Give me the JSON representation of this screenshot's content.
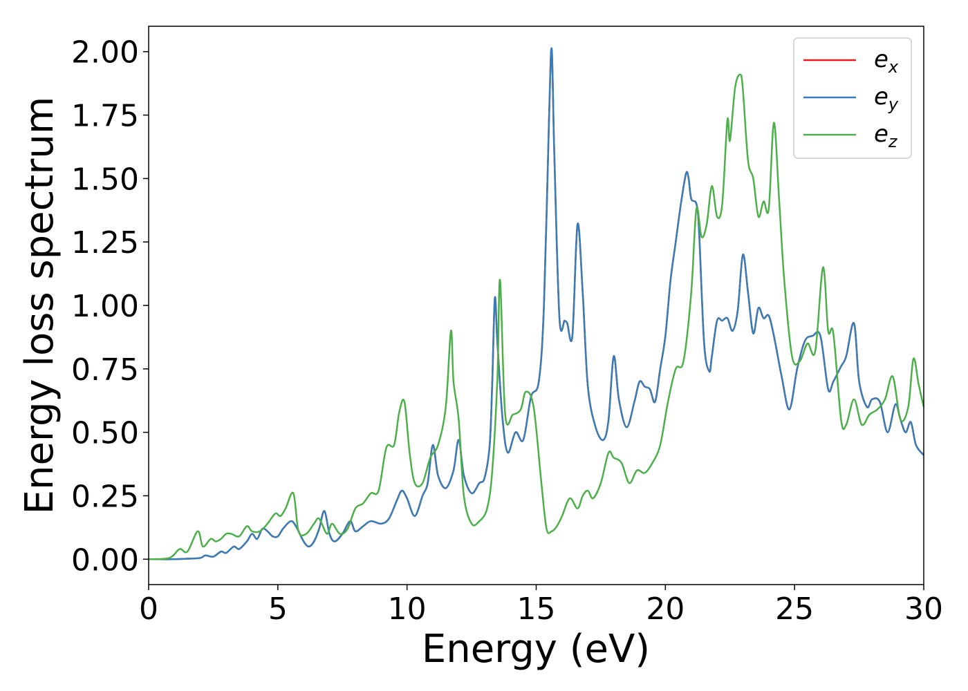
{
  "chart_data": {
    "type": "line",
    "xlabel": "Energy (eV)",
    "ylabel": "Energy loss spectrum",
    "xlim": [
      0,
      30
    ],
    "ylim": [
      -0.1,
      2.1
    ],
    "xticks": [
      0,
      5,
      10,
      15,
      20,
      25,
      30
    ],
    "xtick_labels": [
      "0",
      "5",
      "10",
      "15",
      "20",
      "25",
      "30"
    ],
    "yticks": [
      0.0,
      0.25,
      0.5,
      0.75,
      1.0,
      1.25,
      1.5,
      1.75,
      2.0
    ],
    "ytick_labels": [
      "0.00",
      "0.25",
      "0.50",
      "0.75",
      "1.00",
      "1.25",
      "1.50",
      "1.75",
      "2.00"
    ],
    "grid": false,
    "legend_position": "top-right",
    "series": [
      {
        "name": "e",
        "sub": "x",
        "color": "#e41a1c",
        "x": [
          0,
          1,
          1.5,
          2,
          2.2,
          2.5,
          2.8,
          3.0,
          3.3,
          3.5,
          3.8,
          4.0,
          4.2,
          4.4,
          4.6,
          4.8,
          5.0,
          5.2,
          5.5,
          5.7,
          6.0,
          6.2,
          6.4,
          6.6,
          6.8,
          7.0,
          7.2,
          7.5,
          7.8,
          8.0,
          8.3,
          8.6,
          9.0,
          9.3,
          9.6,
          9.8,
          10.0,
          10.3,
          10.6,
          10.8,
          11.0,
          11.2,
          11.5,
          11.8,
          12.0,
          12.2,
          12.5,
          12.8,
          13.0,
          13.2,
          13.3,
          13.4,
          13.5,
          13.7,
          13.9,
          14.2,
          14.5,
          14.8,
          15.1,
          15.3,
          15.5,
          15.6,
          15.7,
          15.9,
          16.1,
          16.2,
          16.4,
          16.6,
          16.8,
          17.0,
          17.3,
          17.6,
          17.8,
          18.0,
          18.2,
          18.5,
          18.8,
          19.0,
          19.2,
          19.4,
          19.6,
          19.8,
          20.0,
          20.2,
          20.4,
          20.6,
          20.8,
          20.9,
          21.0,
          21.2,
          21.3,
          21.5,
          21.7,
          21.8,
          22.0,
          22.2,
          22.4,
          22.6,
          22.8,
          23.0,
          23.2,
          23.4,
          23.6,
          23.8,
          24.0,
          24.2,
          24.5,
          24.8,
          25.1,
          25.4,
          25.7,
          26.0,
          26.3,
          26.5,
          26.8,
          27.0,
          27.3,
          27.5,
          27.8,
          28.0,
          28.3,
          28.6,
          28.9,
          29.1,
          29.3,
          29.5,
          29.7,
          30.0
        ],
        "y": [
          0,
          0.0,
          0.002,
          0.005,
          0.015,
          0.01,
          0.03,
          0.025,
          0.05,
          0.04,
          0.07,
          0.1,
          0.08,
          0.12,
          0.11,
          0.09,
          0.09,
          0.12,
          0.15,
          0.13,
          0.07,
          0.05,
          0.07,
          0.12,
          0.19,
          0.1,
          0.07,
          0.1,
          0.15,
          0.11,
          0.13,
          0.15,
          0.14,
          0.16,
          0.23,
          0.27,
          0.24,
          0.17,
          0.25,
          0.3,
          0.45,
          0.33,
          0.28,
          0.35,
          0.47,
          0.33,
          0.26,
          0.3,
          0.32,
          0.45,
          0.7,
          1.03,
          0.85,
          0.55,
          0.42,
          0.5,
          0.47,
          0.64,
          0.7,
          1.0,
          1.75,
          2.01,
          1.6,
          0.95,
          0.94,
          0.93,
          0.88,
          1.32,
          1.05,
          0.68,
          0.52,
          0.47,
          0.55,
          0.8,
          0.63,
          0.52,
          0.62,
          0.7,
          0.68,
          0.67,
          0.62,
          0.75,
          0.88,
          1.1,
          1.25,
          1.4,
          1.52,
          1.5,
          1.42,
          1.4,
          1.3,
          0.85,
          0.74,
          0.8,
          0.94,
          0.94,
          0.95,
          0.9,
          0.98,
          1.2,
          1.05,
          0.89,
          0.99,
          0.95,
          0.96,
          0.88,
          0.72,
          0.59,
          0.75,
          0.86,
          0.88,
          0.88,
          0.67,
          0.7,
          0.76,
          0.8,
          0.93,
          0.7,
          0.6,
          0.63,
          0.62,
          0.5,
          0.61,
          0.55,
          0.5,
          0.54,
          0.45,
          0.41
        ]
      },
      {
        "name": "e",
        "sub": "y",
        "color": "#377eb8",
        "x": [
          0,
          1,
          1.5,
          2,
          2.2,
          2.5,
          2.8,
          3.0,
          3.3,
          3.5,
          3.8,
          4.0,
          4.2,
          4.4,
          4.6,
          4.8,
          5.0,
          5.2,
          5.5,
          5.7,
          6.0,
          6.2,
          6.4,
          6.6,
          6.8,
          7.0,
          7.2,
          7.5,
          7.8,
          8.0,
          8.3,
          8.6,
          9.0,
          9.3,
          9.6,
          9.8,
          10.0,
          10.3,
          10.6,
          10.8,
          11.0,
          11.2,
          11.5,
          11.8,
          12.0,
          12.2,
          12.5,
          12.8,
          13.0,
          13.2,
          13.3,
          13.4,
          13.5,
          13.7,
          13.9,
          14.2,
          14.5,
          14.8,
          15.1,
          15.3,
          15.5,
          15.6,
          15.7,
          15.9,
          16.1,
          16.2,
          16.4,
          16.6,
          16.8,
          17.0,
          17.3,
          17.6,
          17.8,
          18.0,
          18.2,
          18.5,
          18.8,
          19.0,
          19.2,
          19.4,
          19.6,
          19.8,
          20.0,
          20.2,
          20.4,
          20.6,
          20.8,
          20.9,
          21.0,
          21.2,
          21.3,
          21.5,
          21.7,
          21.8,
          22.0,
          22.2,
          22.4,
          22.6,
          22.8,
          23.0,
          23.2,
          23.4,
          23.6,
          23.8,
          24.0,
          24.2,
          24.5,
          24.8,
          25.1,
          25.4,
          25.7,
          26.0,
          26.3,
          26.5,
          26.8,
          27.0,
          27.3,
          27.5,
          27.8,
          28.0,
          28.3,
          28.6,
          28.9,
          29.1,
          29.3,
          29.5,
          29.7,
          30.0
        ],
        "y": [
          0,
          0.0,
          0.002,
          0.005,
          0.015,
          0.01,
          0.03,
          0.025,
          0.05,
          0.04,
          0.07,
          0.1,
          0.08,
          0.12,
          0.11,
          0.09,
          0.09,
          0.12,
          0.15,
          0.13,
          0.07,
          0.05,
          0.07,
          0.12,
          0.19,
          0.1,
          0.07,
          0.1,
          0.15,
          0.11,
          0.13,
          0.15,
          0.14,
          0.16,
          0.23,
          0.27,
          0.24,
          0.17,
          0.25,
          0.3,
          0.45,
          0.33,
          0.28,
          0.35,
          0.47,
          0.33,
          0.26,
          0.3,
          0.32,
          0.45,
          0.7,
          1.03,
          0.85,
          0.55,
          0.42,
          0.5,
          0.47,
          0.64,
          0.7,
          1.0,
          1.75,
          2.01,
          1.6,
          0.95,
          0.94,
          0.93,
          0.88,
          1.32,
          1.05,
          0.68,
          0.52,
          0.47,
          0.55,
          0.8,
          0.63,
          0.52,
          0.62,
          0.7,
          0.68,
          0.67,
          0.62,
          0.75,
          0.88,
          1.1,
          1.25,
          1.4,
          1.52,
          1.5,
          1.42,
          1.4,
          1.3,
          0.85,
          0.74,
          0.8,
          0.94,
          0.94,
          0.95,
          0.9,
          0.98,
          1.2,
          1.05,
          0.89,
          0.99,
          0.95,
          0.96,
          0.88,
          0.72,
          0.59,
          0.75,
          0.86,
          0.88,
          0.88,
          0.67,
          0.7,
          0.76,
          0.8,
          0.93,
          0.7,
          0.6,
          0.63,
          0.62,
          0.5,
          0.61,
          0.55,
          0.5,
          0.54,
          0.45,
          0.41
        ]
      },
      {
        "name": "e",
        "sub": "z",
        "color": "#4daf4a",
        "x": [
          0,
          0.8,
          1.2,
          1.5,
          1.9,
          2.1,
          2.4,
          2.6,
          2.8,
          3.0,
          3.2,
          3.5,
          3.8,
          4.0,
          4.3,
          4.6,
          4.9,
          5.1,
          5.3,
          5.6,
          5.8,
          6.1,
          6.4,
          6.6,
          6.9,
          7.1,
          7.4,
          7.7,
          8.0,
          8.3,
          8.6,
          8.9,
          9.2,
          9.5,
          9.7,
          9.9,
          10.1,
          10.3,
          10.6,
          10.9,
          11.2,
          11.5,
          11.7,
          11.8,
          12.0,
          12.2,
          12.5,
          12.8,
          13.1,
          13.3,
          13.5,
          13.6,
          13.8,
          14.1,
          14.4,
          14.6,
          14.9,
          15.2,
          15.4,
          15.6,
          15.8,
          16.0,
          16.3,
          16.6,
          16.8,
          17.0,
          17.2,
          17.5,
          17.8,
          18.0,
          18.3,
          18.6,
          18.9,
          19.2,
          19.5,
          19.8,
          20.1,
          20.4,
          20.7,
          21.0,
          21.2,
          21.4,
          21.6,
          21.8,
          22.0,
          22.2,
          22.4,
          22.5,
          22.7,
          22.9,
          23.0,
          23.2,
          23.4,
          23.6,
          23.8,
          24.0,
          24.2,
          24.4,
          24.6,
          24.9,
          25.2,
          25.5,
          25.8,
          26.1,
          26.3,
          26.5,
          26.8,
          27.0,
          27.3,
          27.6,
          27.9,
          28.2,
          28.5,
          28.8,
          29.1,
          29.4,
          29.6,
          29.8,
          30.0
        ],
        "y": [
          0,
          0.005,
          0.04,
          0.03,
          0.11,
          0.05,
          0.08,
          0.07,
          0.08,
          0.1,
          0.1,
          0.09,
          0.13,
          0.11,
          0.11,
          0.14,
          0.18,
          0.17,
          0.2,
          0.26,
          0.11,
          0.1,
          0.14,
          0.16,
          0.1,
          0.14,
          0.1,
          0.12,
          0.2,
          0.22,
          0.26,
          0.27,
          0.44,
          0.45,
          0.58,
          0.62,
          0.42,
          0.3,
          0.3,
          0.4,
          0.45,
          0.6,
          0.9,
          0.7,
          0.55,
          0.25,
          0.14,
          0.15,
          0.2,
          0.35,
          0.72,
          1.1,
          0.57,
          0.57,
          0.59,
          0.66,
          0.6,
          0.3,
          0.12,
          0.11,
          0.13,
          0.17,
          0.24,
          0.2,
          0.25,
          0.27,
          0.24,
          0.3,
          0.42,
          0.4,
          0.38,
          0.3,
          0.35,
          0.34,
          0.38,
          0.45,
          0.62,
          0.75,
          0.78,
          1.05,
          1.38,
          1.27,
          1.32,
          1.47,
          1.35,
          1.4,
          1.73,
          1.65,
          1.86,
          1.91,
          1.85,
          1.57,
          1.5,
          1.35,
          1.41,
          1.38,
          1.72,
          1.42,
          1.1,
          0.8,
          0.78,
          0.85,
          0.82,
          1.15,
          0.9,
          0.89,
          0.55,
          0.53,
          0.63,
          0.53,
          0.57,
          0.59,
          0.63,
          0.72,
          0.55,
          0.6,
          0.79,
          0.69,
          0.6
        ]
      }
    ]
  }
}
